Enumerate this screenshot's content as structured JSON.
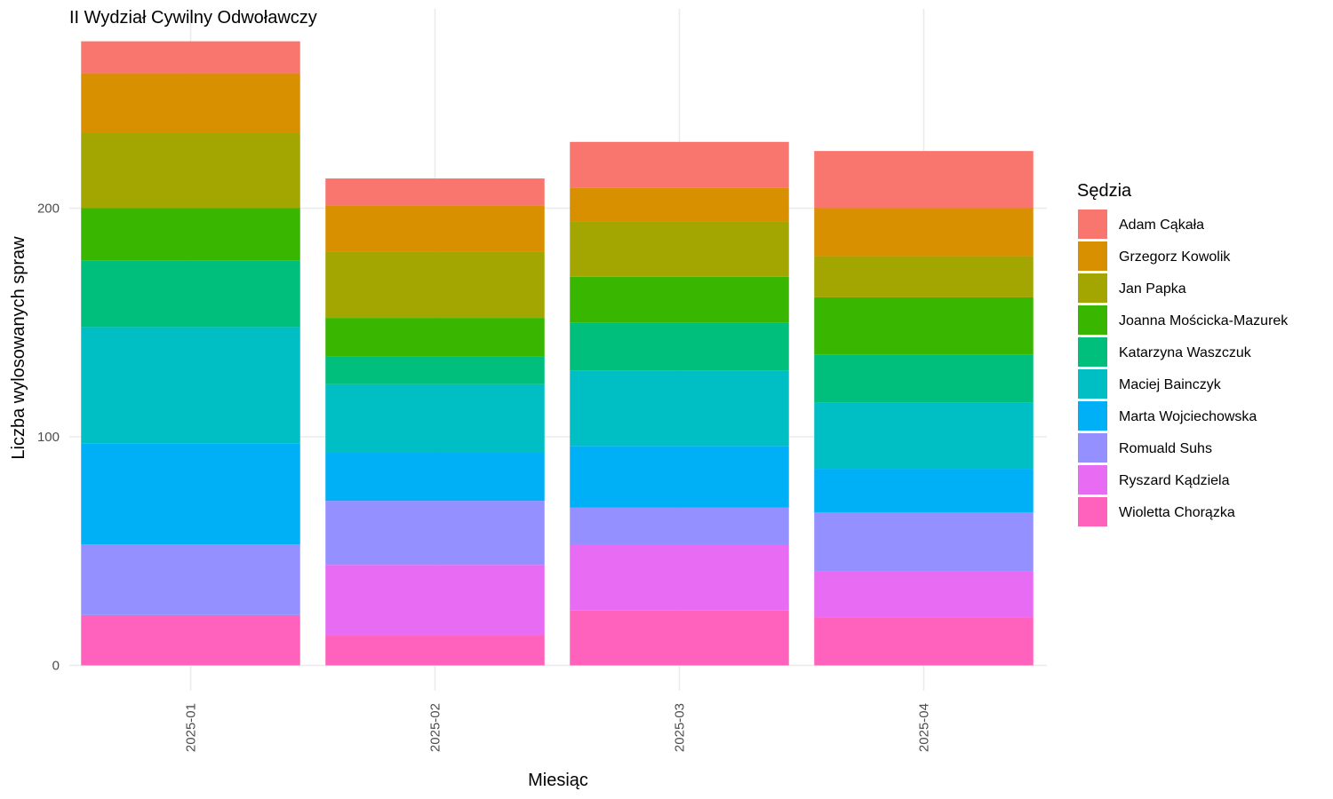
{
  "chart_data": {
    "type": "bar",
    "stacked": true,
    "title": "II Wydział Cywilny Odwoławczy",
    "xlabel": "Miesiąc",
    "ylabel": "Liczba wylosowanych spraw",
    "categories": [
      "2025-01",
      "2025-02",
      "2025-03",
      "2025-04"
    ],
    "y_ticks": [
      0,
      100,
      200
    ],
    "ylim": [
      -11,
      287
    ],
    "grid": true,
    "legend": {
      "title": "Sędzia",
      "placement": "right"
    },
    "series": [
      {
        "name": "Adam Cąkała",
        "color": "#F8766D",
        "values": [
          14,
          12,
          20,
          25
        ]
      },
      {
        "name": "Grzegorz Kowolik",
        "color": "#D89000",
        "values": [
          26,
          20,
          15,
          21
        ]
      },
      {
        "name": "Jan Papka",
        "color": "#A3A500",
        "values": [
          33,
          29,
          24,
          18
        ]
      },
      {
        "name": "Joanna Mościcka-Mazurek",
        "color": "#39B600",
        "values": [
          23,
          17,
          20,
          25
        ]
      },
      {
        "name": "Katarzyna Waszczuk",
        "color": "#00BF7D",
        "values": [
          29,
          12,
          21,
          21
        ]
      },
      {
        "name": "Maciej Bainczyk",
        "color": "#00BFC4",
        "values": [
          51,
          30,
          33,
          29
        ]
      },
      {
        "name": "Marta Wojciechowska",
        "color": "#00B0F6",
        "values": [
          44,
          21,
          27,
          19
        ]
      },
      {
        "name": "Romuald Suhs",
        "color": "#9590FF",
        "values": [
          31,
          28,
          16,
          26
        ]
      },
      {
        "name": "Ryszard Kądziela",
        "color": "#E76BF3",
        "values": [
          0,
          31,
          29,
          20
        ]
      },
      {
        "name": "Wioletta Chorązka",
        "color": "#FF62BC",
        "values": [
          22,
          13,
          24,
          21
        ]
      }
    ]
  }
}
